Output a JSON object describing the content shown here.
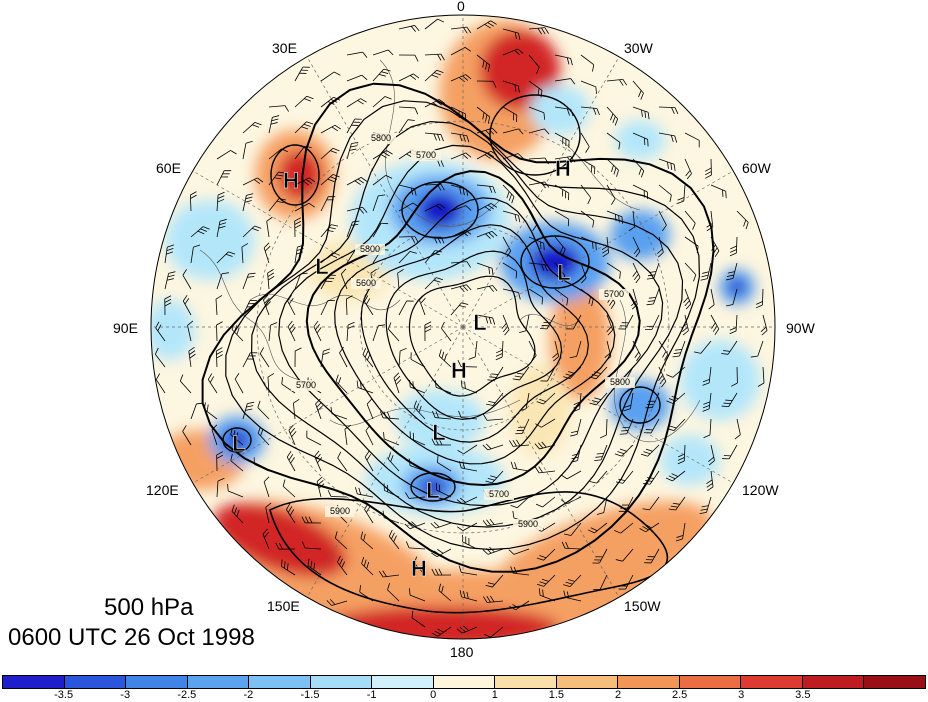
{
  "map": {
    "title_level": "500 hPa",
    "title_time": "0600 UTC 26 Oct 1998",
    "longitude_labels": [
      "0",
      "30W",
      "60W",
      "90W",
      "120W",
      "150W",
      "180",
      "150E",
      "120E",
      "90E",
      "60E",
      "30E"
    ],
    "contour_labels": [
      "5800",
      "5700",
      "5600",
      "5700",
      "5800",
      "5900",
      "5700",
      "5900",
      "5700",
      "5800"
    ],
    "pressure_centers": [
      "H",
      "H",
      "L",
      "L",
      "H",
      "L",
      "L",
      "L",
      "H",
      "L"
    ],
    "anomaly_colors": {
      "strong_neg": "#1414c8",
      "neg": "#5aa0f0",
      "weak_neg": "#b4e6fa",
      "weak_pos": "#fae6b4",
      "pos": "#f5a064",
      "strong_pos": "#d22828"
    }
  },
  "colorbar": {
    "colors": [
      "#1e1ecd",
      "#2b55dd",
      "#3f84e6",
      "#5ba3ee",
      "#7dc0f3",
      "#a7dcf8",
      "#d2f0fb",
      "#fdf6dc",
      "#fae0a8",
      "#f7bd7a",
      "#f29658",
      "#ec6c44",
      "#dd3a32",
      "#bf1c22",
      "#9a0f16"
    ],
    "ticks": [
      "-3.5",
      "-3",
      "-2.5",
      "-2",
      "-1.5",
      "-1",
      "0",
      "1",
      "1.5",
      "2",
      "2.5",
      "3",
      "3.5"
    ]
  }
}
